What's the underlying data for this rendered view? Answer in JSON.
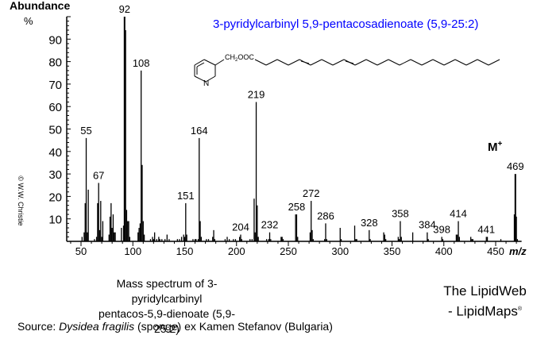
{
  "labels": {
    "y_axis_title": "Abundance",
    "y_axis_unit": "%",
    "x_axis_unit": "m/z",
    "copyright": "© W.W. Christie",
    "compound_title": "3-pyridylcarbinyl 5,9-pentacosadienoate (5,9-25:2)",
    "structure_group": "CH2OOC",
    "structure_n": "N",
    "molecular_ion_label": "M",
    "molecular_ion_charge": "+",
    "caption_line1": "Mass spectrum of 3-pyridylcarbinyl",
    "caption_line2": "pentacos-5,9-dienoate (5,9-25:2)",
    "brand_line1": "The LipidWeb",
    "brand_line2": "- LipidMaps",
    "brand_mark": "®",
    "source_prefix": "Source:",
    "source_species": "Dysidea fragilis",
    "source_suffix": "(sponge) ex Kamen Stefanov (Bulgaria)"
  },
  "colors": {
    "title": "#0000ff",
    "bars": "#000000",
    "axis": "#000000"
  },
  "chart_data": {
    "type": "bar",
    "title": "3-pyridylcarbinyl 5,9-pentacosadienoate (5,9-25:2)",
    "xlabel": "m/z",
    "ylabel": "Abundance %",
    "xlim": [
      40,
      475
    ],
    "ylim": [
      0,
      100
    ],
    "x_ticks": [
      50,
      100,
      150,
      200,
      250,
      300,
      350,
      400,
      450
    ],
    "y_ticks": [
      10,
      20,
      30,
      40,
      50,
      60,
      70,
      80,
      90
    ],
    "grid": false,
    "labeled_peaks": [
      {
        "mz": 55,
        "abundance": 46
      },
      {
        "mz": 67,
        "abundance": 26
      },
      {
        "mz": 92,
        "abundance": 100
      },
      {
        "mz": 108,
        "abundance": 76
      },
      {
        "mz": 151,
        "abundance": 17
      },
      {
        "mz": 164,
        "abundance": 46
      },
      {
        "mz": 204,
        "abundance": 3
      },
      {
        "mz": 219,
        "abundance": 62
      },
      {
        "mz": 232,
        "abundance": 4
      },
      {
        "mz": 258,
        "abundance": 12
      },
      {
        "mz": 272,
        "abundance": 18
      },
      {
        "mz": 286,
        "abundance": 8
      },
      {
        "mz": 328,
        "abundance": 5
      },
      {
        "mz": 358,
        "abundance": 9
      },
      {
        "mz": 384,
        "abundance": 4
      },
      {
        "mz": 398,
        "abundance": 2
      },
      {
        "mz": 414,
        "abundance": 9
      },
      {
        "mz": 441,
        "abundance": 2
      },
      {
        "mz": 469,
        "abundance": 30
      }
    ],
    "peaks": [
      [
        51,
        2
      ],
      [
        53,
        4
      ],
      [
        54,
        17
      ],
      [
        55,
        46
      ],
      [
        56,
        4
      ],
      [
        57,
        23
      ],
      [
        63,
        1
      ],
      [
        65,
        2
      ],
      [
        66,
        17
      ],
      [
        67,
        26
      ],
      [
        68,
        5
      ],
      [
        69,
        18
      ],
      [
        70,
        2
      ],
      [
        71,
        9
      ],
      [
        77,
        3
      ],
      [
        78,
        11
      ],
      [
        79,
        17
      ],
      [
        80,
        6
      ],
      [
        81,
        12
      ],
      [
        82,
        4
      ],
      [
        83,
        4
      ],
      [
        89,
        6
      ],
      [
        91,
        7
      ],
      [
        92,
        100
      ],
      [
        93,
        94
      ],
      [
        94,
        14
      ],
      [
        95,
        9
      ],
      [
        96,
        9
      ],
      [
        97,
        2
      ],
      [
        105,
        4
      ],
      [
        106,
        6
      ],
      [
        107,
        8
      ],
      [
        108,
        76
      ],
      [
        109,
        34
      ],
      [
        110,
        9
      ],
      [
        111,
        3
      ],
      [
        117,
        1
      ],
      [
        119,
        2
      ],
      [
        120,
        1
      ],
      [
        121,
        4
      ],
      [
        123,
        1
      ],
      [
        125,
        2
      ],
      [
        126,
        1
      ],
      [
        128,
        1
      ],
      [
        131,
        1
      ],
      [
        133,
        3
      ],
      [
        135,
        1
      ],
      [
        143,
        1
      ],
      [
        145,
        1
      ],
      [
        147,
        2
      ],
      [
        149,
        3
      ],
      [
        150,
        2
      ],
      [
        151,
        17
      ],
      [
        152,
        3
      ],
      [
        158,
        1
      ],
      [
        160,
        1
      ],
      [
        161,
        1
      ],
      [
        163,
        1
      ],
      [
        164,
        46
      ],
      [
        165,
        9
      ],
      [
        166,
        2
      ],
      [
        171,
        1
      ],
      [
        173,
        1
      ],
      [
        177,
        2
      ],
      [
        178,
        5
      ],
      [
        179,
        1
      ],
      [
        189,
        1
      ],
      [
        191,
        2
      ],
      [
        193,
        1
      ],
      [
        197,
        1
      ],
      [
        199,
        1
      ],
      [
        203,
        2
      ],
      [
        204,
        3
      ],
      [
        205,
        1
      ],
      [
        213,
        1
      ],
      [
        215,
        1
      ],
      [
        217,
        19
      ],
      [
        218,
        4
      ],
      [
        219,
        62
      ],
      [
        220,
        16
      ],
      [
        221,
        2
      ],
      [
        229,
        1
      ],
      [
        231,
        1
      ],
      [
        232,
        4
      ],
      [
        233,
        1
      ],
      [
        243,
        2
      ],
      [
        244,
        2
      ],
      [
        245,
        1
      ],
      [
        257,
        12
      ],
      [
        258,
        12
      ],
      [
        259,
        2
      ],
      [
        271,
        4
      ],
      [
        272,
        18
      ],
      [
        273,
        5
      ],
      [
        274,
        1
      ],
      [
        285,
        1
      ],
      [
        286,
        8
      ],
      [
        287,
        1
      ],
      [
        300,
        6
      ],
      [
        301,
        1
      ],
      [
        314,
        7
      ],
      [
        315,
        1
      ],
      [
        316,
        1
      ],
      [
        328,
        5
      ],
      [
        329,
        1
      ],
      [
        342,
        4
      ],
      [
        343,
        3
      ],
      [
        344,
        1
      ],
      [
        356,
        2
      ],
      [
        357,
        1
      ],
      [
        358,
        9
      ],
      [
        359,
        2
      ],
      [
        370,
        4
      ],
      [
        384,
        4
      ],
      [
        385,
        1
      ],
      [
        398,
        2
      ],
      [
        399,
        1
      ],
      [
        412,
        3
      ],
      [
        413,
        3
      ],
      [
        414,
        9
      ],
      [
        415,
        2
      ],
      [
        426,
        2
      ],
      [
        427,
        1
      ],
      [
        428,
        1
      ],
      [
        441,
        2
      ],
      [
        442,
        2
      ],
      [
        455,
        1
      ],
      [
        468,
        12
      ],
      [
        469,
        30
      ],
      [
        470,
        11
      ],
      [
        471,
        1
      ]
    ]
  }
}
